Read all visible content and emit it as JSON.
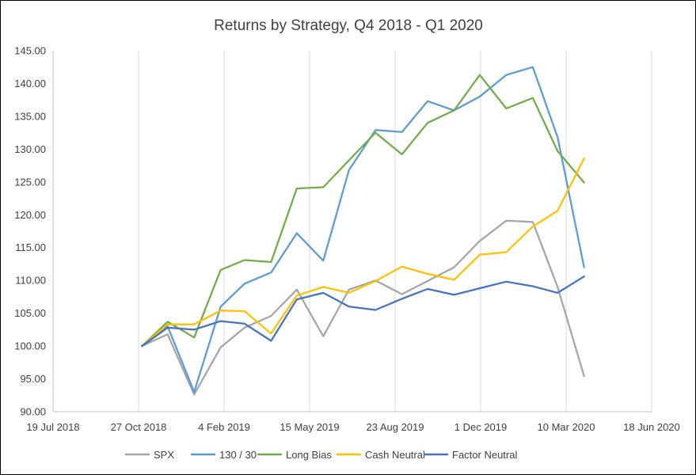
{
  "chart_data": {
    "type": "line",
    "title": "Returns by Strategy, Q4 2018  - Q1 2020",
    "xlabel": "",
    "ylabel": "",
    "ylim": [
      90,
      145
    ],
    "yticks": [
      90,
      95,
      100,
      105,
      110,
      115,
      120,
      125,
      130,
      135,
      140,
      145
    ],
    "ytick_labels": [
      "90.00",
      "95.00",
      "100.00",
      "105.00",
      "110.00",
      "115.00",
      "120.00",
      "125.00",
      "130.00",
      "135.00",
      "140.00",
      "145.00"
    ],
    "xlim": [
      "2018-07-19",
      "2020-06-18"
    ],
    "xticks": [
      "2018-07-19",
      "2018-10-27",
      "2019-02-04",
      "2019-05-15",
      "2019-08-23",
      "2019-12-01",
      "2020-03-10",
      "2020-06-18"
    ],
    "xtick_labels": [
      "19 Jul 2018",
      "27 Oct 2018",
      "4 Feb 2019",
      "15 May 2019",
      "23 Aug 2019",
      "1 Dec 2019",
      "10 Mar 2020",
      "18 Jun 2020"
    ],
    "grid": "vertical",
    "legend": "bottom",
    "x": [
      "2018-10-31",
      "2018-11-30",
      "2018-12-31",
      "2019-01-31",
      "2019-02-28",
      "2019-03-31",
      "2019-04-30",
      "2019-05-31",
      "2019-06-30",
      "2019-07-31",
      "2019-08-31",
      "2019-09-30",
      "2019-10-31",
      "2019-11-30",
      "2019-12-31",
      "2020-01-31",
      "2020-02-29",
      "2020-03-31"
    ],
    "series": [
      {
        "name": "SPX",
        "color": "#a5a5a5",
        "values": [
          100.0,
          101.8,
          92.6,
          99.8,
          102.8,
          104.6,
          108.6,
          101.5,
          108.6,
          110.0,
          107.9,
          109.9,
          112.0,
          116.0,
          119.1,
          118.9,
          109.0,
          95.4
        ]
      },
      {
        "name": "130 / 30",
        "color": "#5b9bd5",
        "values": [
          100.0,
          103.0,
          93.0,
          106.0,
          109.5,
          111.2,
          117.2,
          113.0,
          126.8,
          132.9,
          132.6,
          137.3,
          135.9,
          138.0,
          141.3,
          142.5,
          131.8,
          112.0
        ]
      },
      {
        "name": "Long Bias",
        "color": "#70ad47",
        "values": [
          100.0,
          103.7,
          101.3,
          111.6,
          113.1,
          112.8,
          124.0,
          124.2,
          128.3,
          132.5,
          129.2,
          134.0,
          135.9,
          141.3,
          136.2,
          137.8,
          129.7,
          124.9
        ]
      },
      {
        "name": "Cash Neutral",
        "color": "#ffc000",
        "values": [
          100.0,
          103.3,
          103.3,
          105.4,
          105.3,
          101.9,
          107.7,
          109.0,
          108.1,
          109.9,
          112.1,
          111.0,
          110.1,
          113.9,
          114.3,
          118.2,
          120.6,
          128.6
        ]
      },
      {
        "name": "Factor Neutral",
        "color": "#4472c4",
        "values": [
          100.0,
          102.8,
          102.5,
          103.8,
          103.4,
          100.8,
          107.1,
          108.1,
          106.0,
          105.5,
          107.2,
          108.7,
          107.8,
          108.8,
          109.8,
          109.1,
          108.1,
          110.6
        ]
      }
    ]
  }
}
